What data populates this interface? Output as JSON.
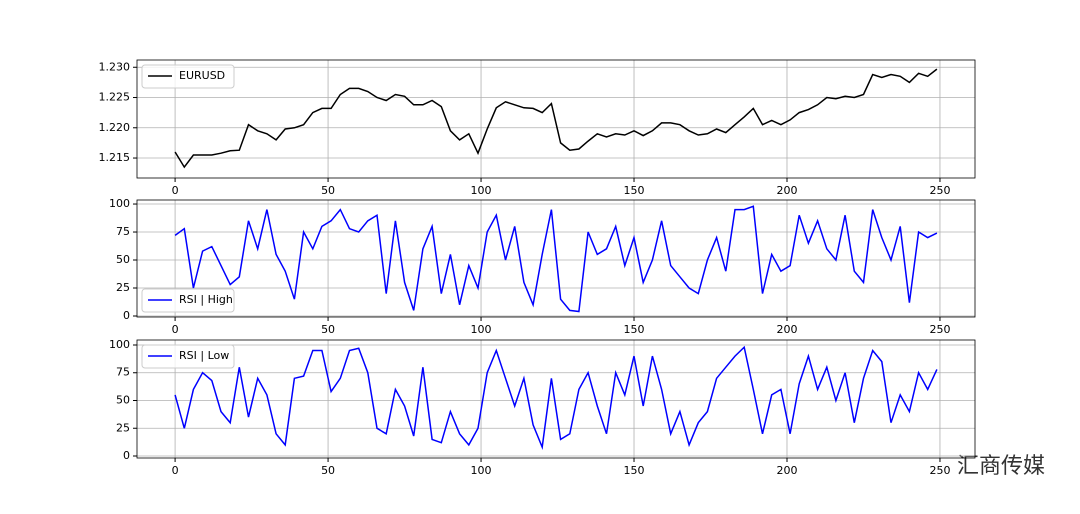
{
  "chart_data": [
    {
      "type": "line",
      "x": [
        0,
        3,
        6,
        9,
        12,
        15,
        18,
        21,
        24,
        27,
        30,
        33,
        36,
        39,
        42,
        45,
        48,
        51,
        54,
        57,
        60,
        63,
        66,
        69,
        72,
        75,
        78,
        81,
        84,
        87,
        90,
        93,
        96,
        99,
        102,
        105,
        108,
        111,
        114,
        117,
        120,
        123,
        126,
        129,
        132,
        135,
        138,
        141,
        144,
        147,
        150,
        153,
        156,
        159,
        162,
        165,
        168,
        171,
        174,
        177,
        180,
        183,
        186,
        189,
        192,
        195,
        198,
        201,
        204,
        207,
        210,
        213,
        216,
        219,
        222,
        225,
        228,
        231,
        234,
        237,
        240,
        243,
        246,
        249
      ],
      "series": [
        {
          "name": "EURUSD",
          "color": "#000000",
          "values": [
            1.216,
            1.2135,
            1.2155,
            1.2155,
            1.2155,
            1.2158,
            1.2162,
            1.2163,
            1.2205,
            1.2195,
            1.219,
            1.218,
            1.2198,
            1.22,
            1.2205,
            1.2225,
            1.2232,
            1.2232,
            1.2255,
            1.2265,
            1.2265,
            1.226,
            1.225,
            1.2245,
            1.2255,
            1.2252,
            1.2238,
            1.2238,
            1.2245,
            1.2235,
            1.2195,
            1.218,
            1.219,
            1.2158,
            1.2198,
            1.2233,
            1.2243,
            1.2238,
            1.2233,
            1.2232,
            1.2225,
            1.224,
            1.2175,
            1.2163,
            1.2165,
            1.2178,
            1.219,
            1.2185,
            1.219,
            1.2188,
            1.2195,
            1.2187,
            1.2195,
            1.2208,
            1.2208,
            1.2205,
            1.2195,
            1.2188,
            1.219,
            1.2198,
            1.2192,
            1.2205,
            1.2218,
            1.2232,
            1.2205,
            1.2212,
            1.2205,
            1.2213,
            1.2225,
            1.223,
            1.2238,
            1.225,
            1.2248,
            1.2252,
            1.225,
            1.2255,
            1.2288,
            1.2283,
            1.2288,
            1.2285,
            1.2275,
            1.229,
            1.2285,
            1.2297
          ]
        }
      ],
      "xlim": [
        -12.45,
        261.45
      ],
      "ylim": [
        1.2117,
        1.2312
      ],
      "xticks": [
        0,
        50,
        100,
        150,
        200,
        250
      ],
      "yticks": [
        1.215,
        {
          "value": 1.22,
          "label": "1.220"
        },
        1.225,
        {
          "value": 1.23,
          "label": "1.230"
        }
      ],
      "grid": true,
      "legend": "upper left"
    },
    {
      "type": "line",
      "x": [
        0,
        3,
        6,
        9,
        12,
        15,
        18,
        21,
        24,
        27,
        30,
        33,
        36,
        39,
        42,
        45,
        48,
        51,
        54,
        57,
        60,
        63,
        66,
        69,
        72,
        75,
        78,
        81,
        84,
        87,
        90,
        93,
        96,
        99,
        102,
        105,
        108,
        111,
        114,
        117,
        120,
        123,
        126,
        129,
        132,
        135,
        138,
        141,
        144,
        147,
        150,
        153,
        156,
        159,
        162,
        165,
        168,
        171,
        174,
        177,
        180,
        183,
        186,
        189,
        192,
        195,
        198,
        201,
        204,
        207,
        210,
        213,
        216,
        219,
        222,
        225,
        228,
        231,
        234,
        237,
        240,
        243,
        246,
        249
      ],
      "series": [
        {
          "name": "RSI | High",
          "color": "#0000ff",
          "values": [
            72,
            78,
            25,
            58,
            62,
            45,
            28,
            35,
            85,
            60,
            95,
            55,
            40,
            15,
            75,
            60,
            80,
            85,
            95,
            78,
            75,
            85,
            90,
            20,
            85,
            30,
            5,
            60,
            80,
            20,
            55,
            10,
            45,
            25,
            75,
            90,
            50,
            80,
            30,
            10,
            55,
            95,
            15,
            5,
            4,
            75,
            55,
            60,
            80,
            45,
            70,
            30,
            50,
            85,
            45,
            35,
            25,
            20,
            50,
            70,
            40,
            95,
            95,
            98,
            20,
            55,
            40,
            45,
            90,
            65,
            85,
            60,
            50,
            90,
            40,
            30,
            95,
            70,
            50,
            80,
            12,
            75,
            70,
            74
          ]
        }
      ],
      "xlim": [
        -12.45,
        261.45
      ],
      "ylim": [
        -0.9,
        103.6
      ],
      "xticks": [
        0,
        50,
        100,
        150,
        200,
        250
      ],
      "yticks": [
        0,
        25,
        50,
        75,
        100
      ],
      "grid": true,
      "legend": "lower left"
    },
    {
      "type": "line",
      "x": [
        0,
        3,
        6,
        9,
        12,
        15,
        18,
        21,
        24,
        27,
        30,
        33,
        36,
        39,
        42,
        45,
        48,
        51,
        54,
        57,
        60,
        63,
        66,
        69,
        72,
        75,
        78,
        81,
        84,
        87,
        90,
        93,
        96,
        99,
        102,
        105,
        108,
        111,
        114,
        117,
        120,
        123,
        126,
        129,
        132,
        135,
        138,
        141,
        144,
        147,
        150,
        153,
        156,
        159,
        162,
        165,
        168,
        171,
        174,
        177,
        180,
        183,
        186,
        189,
        192,
        195,
        198,
        201,
        204,
        207,
        210,
        213,
        216,
        219,
        222,
        225,
        228,
        231,
        234,
        237,
        240,
        243,
        246,
        249
      ],
      "series": [
        {
          "name": "RSI | Low",
          "color": "#0000ff",
          "values": [
            55,
            25,
            60,
            75,
            68,
            40,
            30,
            80,
            35,
            70,
            55,
            20,
            10,
            70,
            72,
            95,
            95,
            58,
            70,
            95,
            97,
            75,
            25,
            20,
            60,
            45,
            18,
            80,
            15,
            12,
            40,
            20,
            10,
            25,
            75,
            95,
            70,
            45,
            70,
            28,
            8,
            70,
            15,
            20,
            60,
            75,
            45,
            20,
            75,
            55,
            90,
            45,
            90,
            60,
            20,
            40,
            10,
            30,
            40,
            70,
            80,
            90,
            98,
            60,
            20,
            55,
            60,
            20,
            65,
            90,
            60,
            80,
            50,
            75,
            30,
            70,
            95,
            85,
            30,
            55,
            40,
            75,
            60,
            78
          ]
        }
      ],
      "xlim": [
        -12.45,
        261.45
      ],
      "ylim": [
        -1.8,
        104.5
      ],
      "xticks": [
        0,
        50,
        100,
        150,
        200,
        250
      ],
      "yticks": [
        0,
        25,
        50,
        75,
        100
      ],
      "grid": true,
      "legend": "upper left"
    }
  ],
  "watermark": "汇商传媒"
}
